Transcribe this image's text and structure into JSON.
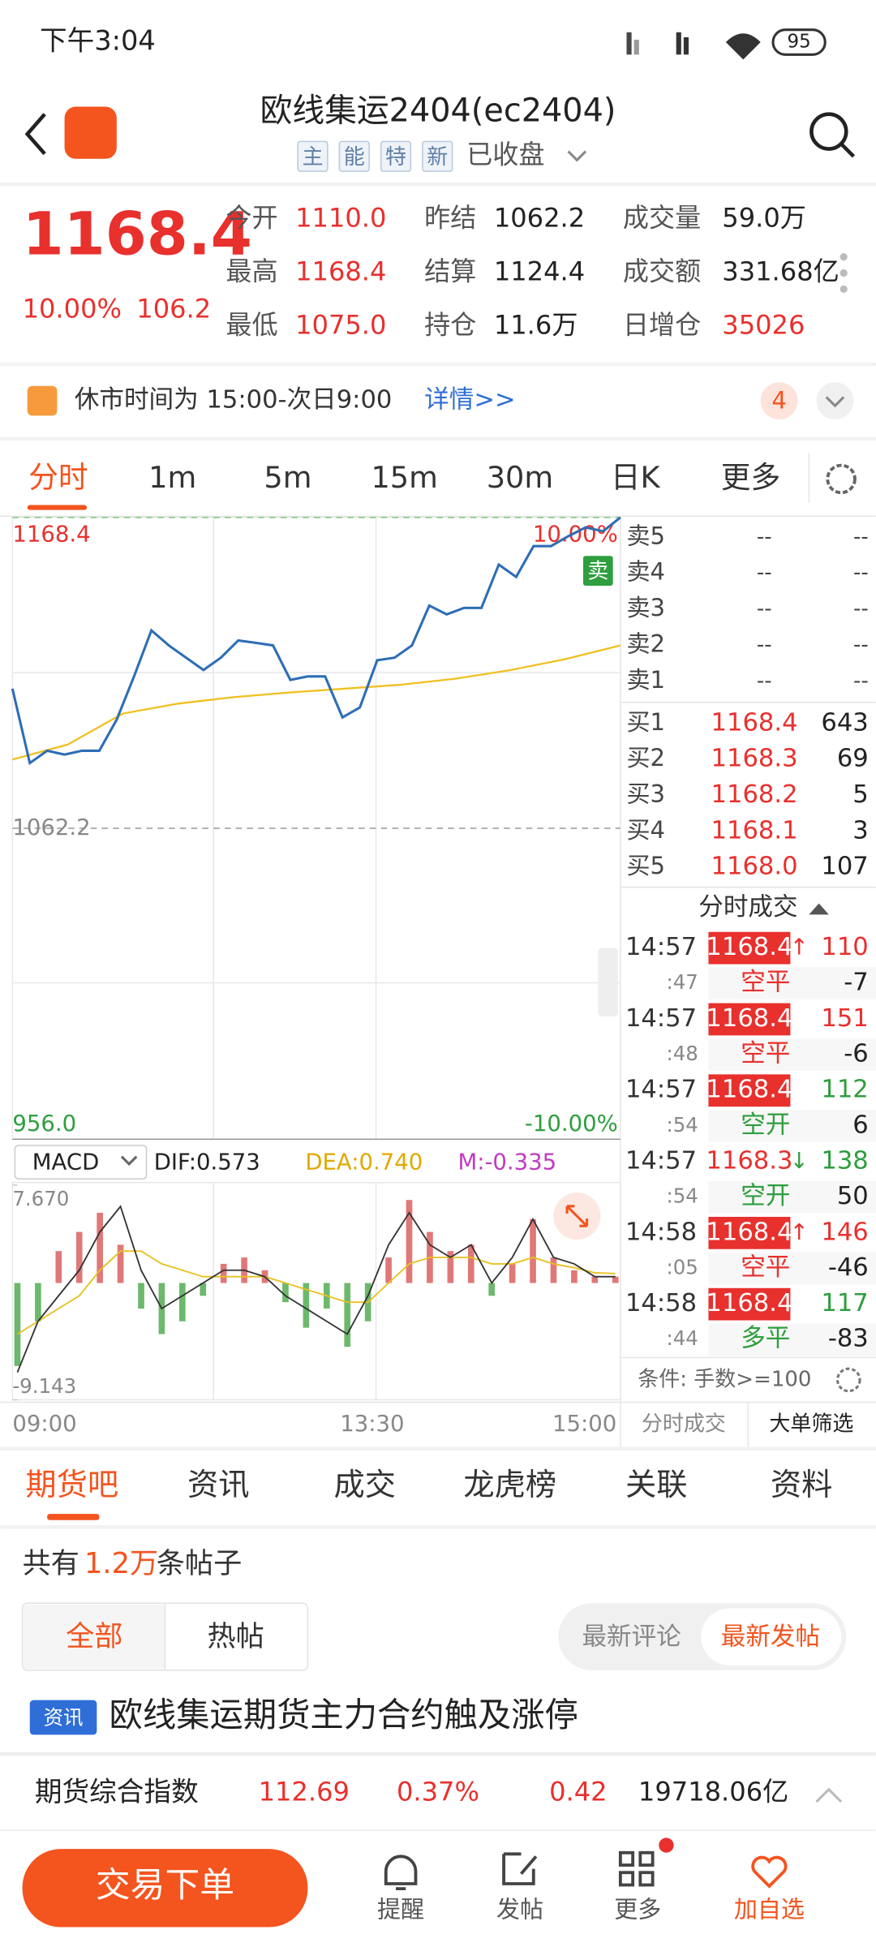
{
  "status": {
    "time": "下午3:04",
    "battery": "95"
  },
  "header": {
    "title": "欧线集运2404(ec2404)",
    "tags": [
      "主",
      "能",
      "特",
      "新"
    ],
    "state": "已收盘"
  },
  "quote": {
    "price": "1168.4",
    "pct": "10.00%",
    "change": "106.2",
    "fields": [
      {
        "label": "今开",
        "value": "1110.0",
        "color": "#e8302d"
      },
      {
        "label": "最高",
        "value": "1168.4",
        "color": "#e8302d"
      },
      {
        "label": "最低",
        "value": "1075.0",
        "color": "#e8302d"
      },
      {
        "label": "昨结",
        "value": "1062.2",
        "color": "#222222"
      },
      {
        "label": "结算",
        "value": "1124.4",
        "color": "#222222"
      },
      {
        "label": "持仓",
        "value": "11.6万",
        "color": "#222222"
      },
      {
        "label": "成交量",
        "value": "59.0万",
        "color": "#222222"
      },
      {
        "label": "成交额",
        "value": "331.68亿",
        "color": "#222222"
      },
      {
        "label": "日增仓",
        "value": "35026",
        "color": "#e8302d"
      }
    ]
  },
  "notice": {
    "text": "休市时间为 15:00-次日9:00",
    "link": "详情>>",
    "badge": "4"
  },
  "periods": [
    "分时",
    "1m",
    "5m",
    "15m",
    "30m",
    "日K",
    "更多"
  ],
  "chart": {
    "type": "line",
    "ylim": [
      956.0,
      1168.4
    ],
    "yticks": [
      1168.4,
      1062.2,
      {
        "value": 956.0,
        "label": "956.0"
      }
    ],
    "pct_labels": [
      "10.00%",
      "-10.00%"
    ],
    "xticks": [
      "09:00",
      "13:30",
      "15:00"
    ],
    "sell_tag": "卖",
    "price_color": "#2d6db5",
    "avg_color": "#f0c020",
    "price": [
      1109.9,
      1084.5,
      1088.7,
      1087.4,
      1088.7,
      1088.7,
      1099.3,
      1114.1,
      1129.8,
      1124.7,
      1120.5,
      1116.3,
      1120.5,
      1126.4,
      1125.6,
      1124.7,
      1112.9,
      1114.1,
      1114.1,
      1100.1,
      1103.5,
      1119.6,
      1120.5,
      1124.7,
      1138.3,
      1135.3,
      1137.5,
      1137.5,
      1152.3,
      1148.1,
      1158.6,
      1158.6,
      1162.0,
      1165.0,
      1163.7,
      1168.4
    ],
    "avg": [
      1085.7,
      1090.8,
      1101.4,
      1104.8,
      1107.0,
      1108.6,
      1109.9,
      1111.2,
      1113.3,
      1116.2,
      1120.0,
      1124.7
    ]
  },
  "macd": {
    "type": "bar",
    "selector": "MACD",
    "dif_label": "DIF:0.573",
    "dea_label": "DEA:0.740",
    "m_label": "M:-0.335",
    "ylim": [
      -9.143,
      7.67
    ],
    "yticks": [
      {
        "value": 7.67,
        "label": "7.670"
      },
      -9.143
    ],
    "hist": [
      -6.5,
      -3,
      2.5,
      4,
      5.5,
      3,
      -2,
      -4,
      -3,
      -1,
      1.5,
      2,
      1,
      -1.5,
      -3.5,
      -2,
      -5,
      -3,
      2,
      6.5,
      4,
      2.5,
      3,
      -1,
      1.5,
      5,
      2,
      1,
      0.5,
      0.5
    ],
    "dif": [
      -7,
      -3,
      -1,
      1,
      4,
      6,
      1,
      -2,
      -1,
      0,
      1,
      1,
      0.5,
      -1,
      -2,
      -3,
      -4,
      -1,
      3,
      5.5,
      3,
      2,
      3,
      0,
      2,
      5,
      2,
      1.5,
      0.5,
      0.5
    ],
    "dea": [
      -4,
      -3,
      -2,
      -1,
      1,
      2.5,
      2.5,
      1.5,
      1,
      0.5,
      0.5,
      0.5,
      0.5,
      0,
      -0.5,
      -1,
      -1.5,
      -1.5,
      0,
      1.5,
      2,
      2,
      2,
      1.5,
      1.5,
      2,
      1.5,
      1.2,
      0.8,
      0.74
    ]
  },
  "book": {
    "sell": [
      {
        "label": "卖5",
        "price": "--",
        "vol": "--"
      },
      {
        "label": "卖4",
        "price": "--",
        "vol": "--"
      },
      {
        "label": "卖3",
        "price": "--",
        "vol": "--"
      },
      {
        "label": "卖2",
        "price": "--",
        "vol": "--"
      },
      {
        "label": "卖1",
        "price": "--",
        "vol": "--"
      }
    ],
    "buy": [
      {
        "label": "买1",
        "price": "1168.4",
        "vol": "643"
      },
      {
        "label": "买2",
        "price": "1168.3",
        "vol": "69"
      },
      {
        "label": "买3",
        "price": "1168.2",
        "vol": "5"
      },
      {
        "label": "买4",
        "price": "1168.1",
        "vol": "3"
      },
      {
        "label": "买5",
        "price": "1168.0",
        "vol": "107"
      }
    ]
  },
  "trades": {
    "title": "分时成交",
    "filter": "条件: 手数>=100",
    "tabs": [
      "分时成交",
      "大单筛选"
    ],
    "rows": [
      {
        "time": "14:57",
        "sec": ":47",
        "price": "1168.4",
        "dir": "↑",
        "vol": "110",
        "kind": "空平",
        "delta": "-7",
        "price_bg": "#e8302d",
        "vol_color": "#e8302d",
        "kind_color": "#e8302d"
      },
      {
        "time": "14:57",
        "sec": ":48",
        "price": "1168.4",
        "vol": "151",
        "kind": "空平",
        "delta": "-6",
        "price_bg": "#e8302d",
        "vol_color": "#e8302d",
        "kind_color": "#e8302d"
      },
      {
        "time": "14:57",
        "sec": ":54",
        "price": "1168.4",
        "vol": "112",
        "kind": "空开",
        "delta": "6",
        "price_bg": "#e8302d",
        "vol_color": "#2e9e3e",
        "kind_color": "#2e9e3e"
      },
      {
        "time": "14:57",
        "sec": ":54",
        "price": "1168.3",
        "dir": "↓",
        "vol": "138",
        "kind": "空开",
        "delta": "50",
        "vol_color": "#2e9e3e",
        "kind_color": "#2e9e3e"
      },
      {
        "time": "14:58",
        "sec": ":05",
        "price": "1168.4",
        "dir": "↑",
        "vol": "146",
        "kind": "空平",
        "delta": "-46",
        "price_bg": "#e8302d",
        "vol_color": "#e8302d",
        "kind_color": "#e8302d"
      },
      {
        "time": "14:58",
        "sec": ":44",
        "price": "1168.4",
        "vol": "117",
        "kind": "多平",
        "delta": "-83",
        "price_bg": "#e8302d",
        "vol_color": "#2e9e3e",
        "kind_color": "#2e9e3e"
      }
    ]
  },
  "community": {
    "tabs": [
      "期货吧",
      "资讯",
      "成交",
      "龙虎榜",
      "关联",
      "资料"
    ],
    "count_prefix": "共有",
    "count": "1.2万",
    "count_suffix": "条帖子",
    "filters": [
      "全部",
      "热帖"
    ],
    "sorts": [
      "最新评论",
      "最新发帖"
    ],
    "news": {
      "tag": "资讯",
      "title": "欧线集运期货主力合约触及涨停"
    }
  },
  "index": {
    "name": "期货综合指数",
    "values": [
      "112.69",
      "0.37%",
      "0.42",
      "19718.06亿"
    ],
    "colors": [
      "#e8302d",
      "#e8302d",
      "#e8302d",
      "#222222"
    ]
  },
  "nav": {
    "button": "交易下单",
    "items": [
      "提醒",
      "发帖",
      "更多",
      "加自选"
    ]
  }
}
